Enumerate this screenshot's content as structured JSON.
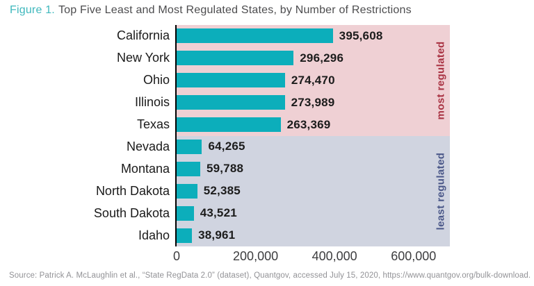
{
  "title": {
    "prefix": "Figure 1.",
    "text": "Top Five Least and Most Regulated States, by Number of Restrictions"
  },
  "chart_data": {
    "type": "bar",
    "orientation": "horizontal",
    "title": "Top Five Least and Most Regulated States, by Number of Restrictions",
    "categories": [
      "California",
      "New York",
      "Ohio",
      "Illinois",
      "Texas",
      "Nevada",
      "Montana",
      "North Dakota",
      "South Dakota",
      "Idaho"
    ],
    "values": [
      395608,
      296296,
      274470,
      273989,
      263369,
      64265,
      59788,
      52385,
      43521,
      38961
    ],
    "value_labels": [
      "395,608",
      "296,296",
      "274,470",
      "273,989",
      "263,369",
      "64,265",
      "59,788",
      "52,385",
      "43,521",
      "38,961"
    ],
    "group_labels": {
      "most": "most regulated",
      "least": "least regulated"
    },
    "groups": [
      "most",
      "most",
      "most",
      "most",
      "most",
      "least",
      "least",
      "least",
      "least",
      "least"
    ],
    "x_ticks": [
      {
        "value": 0,
        "label": "0"
      },
      {
        "value": 200000,
        "label": "200,000"
      },
      {
        "value": 400000,
        "label": "400,000"
      },
      {
        "value": 600000,
        "label": "600,000"
      }
    ],
    "xlim": [
      0,
      692000
    ],
    "grid": false,
    "legend": false,
    "colors": {
      "bar": "#0caebb",
      "most_bg": "#efd0d4",
      "least_bg": "#d0d4e0",
      "most_label": "#a93343",
      "least_label": "#4b5889"
    }
  },
  "source": "Source: Patrick A. McLaughlin et al., “State RegData 2.0” (dataset), Quantgov, accessed July 15, 2020, https://www.quantgov.org/bulk-download."
}
